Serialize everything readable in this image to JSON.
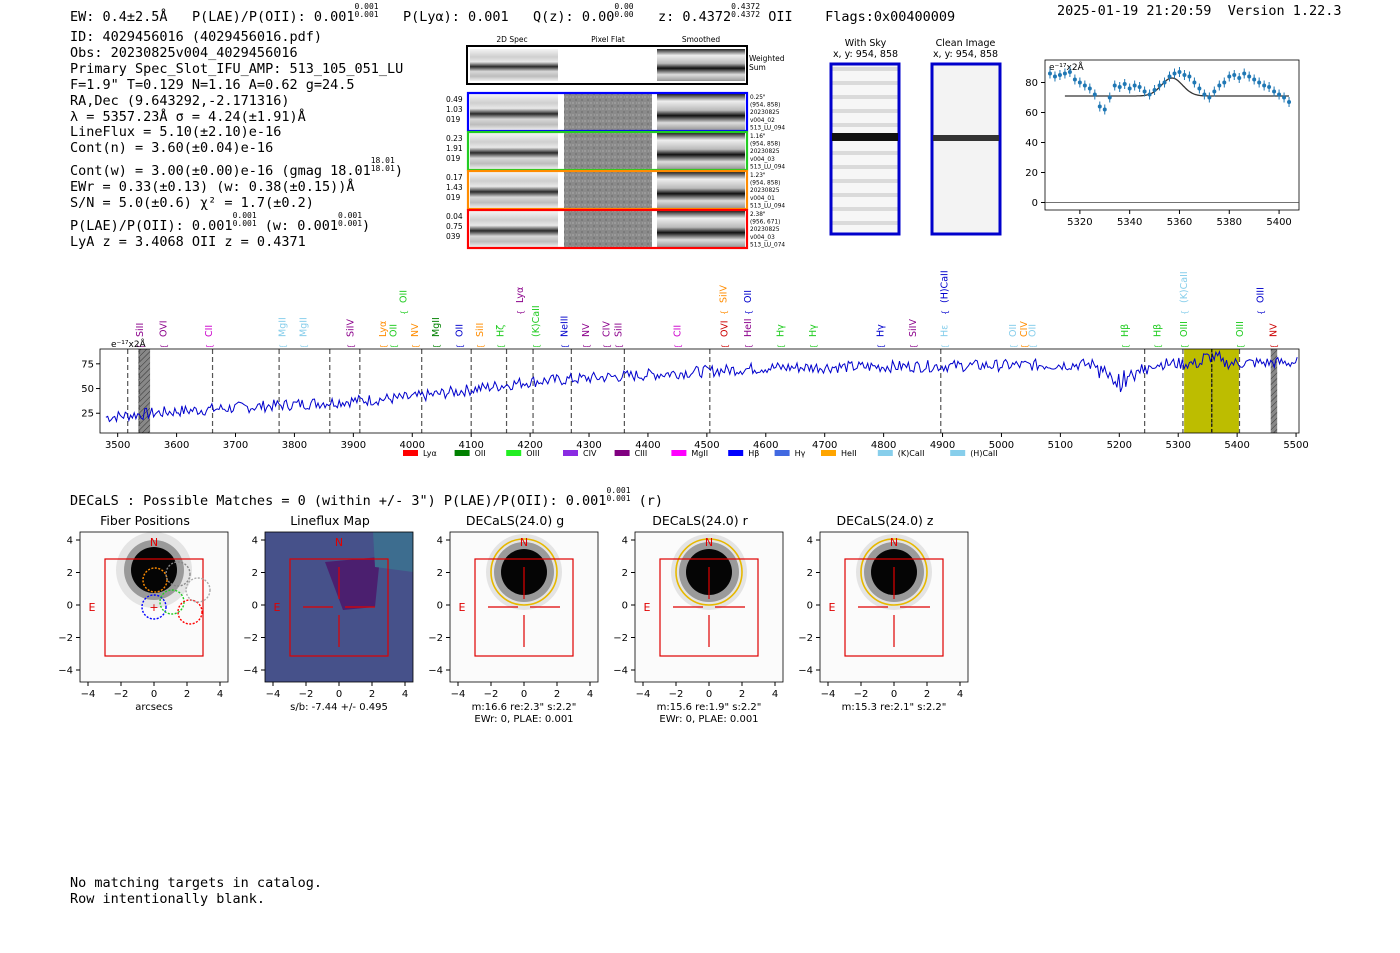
{
  "header": {
    "ew": "EW: 0.4±2.5Å",
    "plae": "P(LAE)/P(OII): 0.001",
    "plae_hi": "0.001",
    "plae_lo": "0.001",
    "plya": "P(Lyα): 0.001",
    "qz": "Q(z): 0.00",
    "qz_hi": "0.00",
    "qz_lo": "0.00",
    "z": "z: 0.4372",
    "z_hi": "0.4372",
    "z_lo": "0.4372",
    "z_line": "OII",
    "flags": "Flags:0x00400009",
    "timestamp": "2025-01-19 21:20:59",
    "version": "Version 1.22.3"
  },
  "info": {
    "id": "ID: 4029456016 (4029456016.pdf)",
    "obs": "Obs: 20230825v004_4029456016",
    "primary": "Primary Spec_Slot_IFU_AMP: 513_105_051_LU",
    "fit": "F=1.9\"  T=0.129  N=1.16  A=0.62  g=24.5",
    "radec": "RA,Dec (9.643292,-2.171316)",
    "lambda": "λ = 5357.23Å   σ = 4.24(±1.91)Å",
    "lineflux": "LineFlux = 5.10(±2.10)e-16",
    "contn": "Cont(n) = 3.60(±0.04)e-16",
    "contw": "Cont(w) = 3.00(±0.00)e-16 (gmag 18.01",
    "gmag_hi": "18.01",
    "gmag_lo": "18.01",
    "ewr": "EWr = 0.33(±0.13) (w: 0.38(±0.15))Å",
    "sn": "S/N = 5.0(±0.6)  χ² = 1.7(±0.2)",
    "plae_line": "P(LAE)/P(OII): 0.001",
    "plae_hi": "0.001",
    "plae_lo": "0.001",
    "plae_w": "(w: 0.001",
    "plae_w_hi": "0.001",
    "plae_w_lo": "0.001",
    "lyaz": "LyA z = 3.4068   OII z = 0.4371"
  },
  "cutouts": {
    "col_headers": [
      "2D Spec",
      "Pixel Flat",
      "Smoothed"
    ],
    "weighted_sum": [
      "Weighted",
      "Sum"
    ],
    "rows": [
      {
        "nums": [
          "0.49",
          "1.03",
          "019"
        ],
        "color": "#0000ff",
        "meta": [
          "0.25\"",
          "(954, 858)",
          "20230825",
          "v004_02",
          "513_LU_094"
        ]
      },
      {
        "nums": [
          "0.23",
          "1.91",
          "019"
        ],
        "color": "#22cc22",
        "meta": [
          "1.16\"",
          "(954, 858)",
          "20230825",
          "v004_03",
          "513_LU_094"
        ]
      },
      {
        "nums": [
          "0.17",
          "1.43",
          "019"
        ],
        "color": "#ff8c00",
        "meta": [
          "1.23\"",
          "(954, 858)",
          "20230825",
          "v004_01",
          "513_LU_094"
        ]
      },
      {
        "nums": [
          "0.04",
          "0.75",
          "039"
        ],
        "color": "#ff0000",
        "meta": [
          "2.38\"",
          "(956, 671)",
          "20230825",
          "v004_03",
          "513_LU_074"
        ]
      }
    ],
    "with_sky": [
      "With Sky",
      "x, y: 954, 858"
    ],
    "clean": [
      "Clean Image",
      "x, y: 954, 858"
    ]
  },
  "zoom_chart": {
    "type": "scatter",
    "unit_label": "e⁻¹⁷x2Å",
    "xlim": [
      5306,
      5408
    ],
    "ylim": [
      -5,
      95
    ],
    "xticks": [
      5320,
      5340,
      5360,
      5380,
      5400
    ],
    "yticks": [
      0,
      20,
      40,
      60,
      80
    ],
    "x": [
      5308,
      5310,
      5312,
      5314,
      5316,
      5318,
      5320,
      5322,
      5324,
      5326,
      5328,
      5330,
      5332,
      5334,
      5336,
      5338,
      5340,
      5342,
      5344,
      5346,
      5348,
      5350,
      5352,
      5354,
      5356,
      5358,
      5360,
      5362,
      5364,
      5366,
      5368,
      5370,
      5372,
      5374,
      5376,
      5378,
      5380,
      5382,
      5384,
      5386,
      5388,
      5390,
      5392,
      5394,
      5396,
      5398,
      5400,
      5402,
      5404
    ],
    "y": [
      86,
      84,
      85,
      86,
      87,
      82,
      80,
      78,
      76,
      72,
      64,
      62,
      70,
      78,
      77,
      79,
      76,
      78,
      77,
      74,
      72,
      75,
      78,
      80,
      84,
      86,
      87,
      85,
      84,
      80,
      76,
      72,
      70,
      74,
      78,
      80,
      84,
      85,
      83,
      86,
      84,
      82,
      80,
      78,
      77,
      74,
      72,
      70,
      67
    ],
    "model_baseline": 71,
    "model_peak": 83,
    "model_center": 5357,
    "model_sigma": 4.2
  },
  "spectrum": {
    "type": "line",
    "unit_label": "e⁻¹⁷x2Å",
    "xlim": [
      3470,
      5505
    ],
    "ylim": [
      5,
      90
    ],
    "xticks": [
      3500,
      3600,
      3700,
      3800,
      3900,
      4000,
      4100,
      4200,
      4300,
      4400,
      4500,
      4600,
      4700,
      4800,
      4900,
      5000,
      5100,
      5200,
      5300,
      5400,
      5500
    ],
    "yticks": [
      25,
      50,
      75
    ],
    "highlight": [
      5310,
      5403
    ],
    "peak": 5357,
    "masked": [
      [
        3535,
        3555
      ],
      [
        5457,
        5468
      ]
    ],
    "dashed_lines": [
      3517,
      3537,
      3661,
      3774,
      3860,
      3911,
      4016,
      4100,
      4160,
      4205,
      4270,
      4360,
      4505,
      4897,
      5243,
      5308,
      5357,
      5404
    ]
  },
  "line_labels": [
    {
      "t": "SiII",
      "x": 3538,
      "row": 1,
      "c": "#8b008b"
    },
    {
      "t": "OVI",
      "x": 3578,
      "row": 1,
      "c": "#8b008b"
    },
    {
      "t": "CII",
      "x": 3655,
      "row": 1,
      "c": "#cc00cc"
    },
    {
      "t": "MgII",
      "x": 3780,
      "row": 1,
      "c": "#87ceeb"
    },
    {
      "t": "MgII",
      "x": 3815,
      "row": 1,
      "c": "#87ceeb"
    },
    {
      "t": "SiIV",
      "x": 3895,
      "row": 1,
      "c": "#8b008b"
    },
    {
      "t": "Lyα",
      "x": 3950,
      "row": 1,
      "c": "#ff8c00"
    },
    {
      "t": "OII",
      "x": 3968,
      "row": 1,
      "c": "#22cc22"
    },
    {
      "t": "OII",
      "x": 3985,
      "row": 0,
      "c": "#22cc22"
    },
    {
      "t": "NV",
      "x": 4005,
      "row": 1,
      "c": "#ff8c00"
    },
    {
      "t": "MgII",
      "x": 4040,
      "row": 1,
      "c": "#008000"
    },
    {
      "t": "OII",
      "x": 4080,
      "row": 1,
      "c": "#0000cc"
    },
    {
      "t": "SiII",
      "x": 4115,
      "row": 1,
      "c": "#ff8c00"
    },
    {
      "t": "Hζ",
      "x": 4150,
      "row": 1,
      "c": "#22cc22"
    },
    {
      "t": "Lyα",
      "x": 4183,
      "row": 0,
      "c": "#8b008b"
    },
    {
      "t": "(K)CaII",
      "x": 4210,
      "row": 1,
      "c": "#22cc22"
    },
    {
      "t": "NeIII",
      "x": 4258,
      "row": 1,
      "c": "#0000cc"
    },
    {
      "t": "NV",
      "x": 4295,
      "row": 1,
      "c": "#8b008b"
    },
    {
      "t": "SiII",
      "x": 4350,
      "row": 1,
      "c": "#8b008b"
    },
    {
      "t": "CIV",
      "x": 4330,
      "row": 1,
      "c": "#8b008b"
    },
    {
      "t": "CII",
      "x": 4450,
      "row": 1,
      "c": "#cc00cc"
    },
    {
      "t": "SiIV",
      "x": 4528,
      "row": 0,
      "c": "#ff8c00"
    },
    {
      "t": "OVI",
      "x": 4530,
      "row": 1,
      "c": "#cc0000"
    },
    {
      "t": "OII",
      "x": 4570,
      "row": 0,
      "c": "#0000cc"
    },
    {
      "t": "HeII",
      "x": 4570,
      "row": 1,
      "c": "#8b008b"
    },
    {
      "t": "Hγ",
      "x": 4625,
      "row": 1,
      "c": "#22cc22"
    },
    {
      "t": "Hγ",
      "x": 4680,
      "row": 1,
      "c": "#22cc22"
    },
    {
      "t": "Hγ",
      "x": 4795,
      "row": 1,
      "c": "#0000cc"
    },
    {
      "t": "SiIV",
      "x": 4850,
      "row": 1,
      "c": "#8b008b"
    },
    {
      "t": "(H)CaII",
      "x": 4903,
      "row": 0,
      "c": "#0000cc"
    },
    {
      "t": "Hε",
      "x": 4903,
      "row": 1,
      "c": "#87ceeb"
    },
    {
      "t": "OII",
      "x": 5020,
      "row": 1,
      "c": "#87ceeb"
    },
    {
      "t": "CIV",
      "x": 5038,
      "row": 1,
      "c": "#ff8c00"
    },
    {
      "t": "OII",
      "x": 5053,
      "row": 1,
      "c": "#87ceeb"
    },
    {
      "t": "(K)CaII",
      "x": 5310,
      "row": 0,
      "c": "#87ceeb"
    },
    {
      "t": "Hβ",
      "x": 5210,
      "row": 1,
      "c": "#22cc22"
    },
    {
      "t": "Hβ",
      "x": 5265,
      "row": 1,
      "c": "#22cc22"
    },
    {
      "t": "OIII",
      "x": 5310,
      "row": 1,
      "c": "#22cc22"
    },
    {
      "t": "OIII",
      "x": 5405,
      "row": 1,
      "c": "#22cc22"
    },
    {
      "t": "OIII",
      "x": 5440,
      "row": 0,
      "c": "#0000cc"
    },
    {
      "t": "NV",
      "x": 5462,
      "row": 1,
      "c": "#cc0000"
    }
  ],
  "legend": [
    {
      "t": "Lyα",
      "c": "#ff0000"
    },
    {
      "t": "OII",
      "c": "#008000"
    },
    {
      "t": "OIII",
      "c": "#22ee22"
    },
    {
      "t": "CIV",
      "c": "#8a2be2"
    },
    {
      "t": "CIII",
      "c": "#800080"
    },
    {
      "t": "MgII",
      "c": "#ff00ff"
    },
    {
      "t": "Hβ",
      "c": "#0000ff"
    },
    {
      "t": "Hγ",
      "c": "#4169e1"
    },
    {
      "t": "HeII",
      "c": "#ffa500"
    },
    {
      "t": "(K)CaII",
      "c": "#87ceeb"
    },
    {
      "t": "(H)CaII",
      "c": "#87ceeb"
    }
  ],
  "decals": {
    "title": "DECaLS : Possible Matches = 0 (within +/- 3\")  P(LAE)/P(OII): 0.001",
    "plae_hi": "0.001",
    "plae_lo": "0.001",
    "band": "(r)"
  },
  "panels": [
    {
      "title": "Fiber Positions",
      "caption": [
        "arcsecs"
      ]
    },
    {
      "title": "Lineflux Map",
      "caption": [
        "s/b: -7.44 +/- 0.495"
      ]
    },
    {
      "title": "DECaLS(24.0) g",
      "caption": [
        "m:16.6  re:2.3\"  s:2.2\"",
        "EWr: 0, PLAE: 0.001"
      ]
    },
    {
      "title": "DECaLS(24.0) r",
      "caption": [
        "m:15.6  re:1.9\"  s:2.2\"",
        "EWr: 0, PLAE: 0.001"
      ]
    },
    {
      "title": "DECaLS(24.0) z",
      "caption": [
        "m:15.3  re:2.1\"  s:2.2\""
      ]
    }
  ],
  "panel_axes": {
    "ticks": [
      "−4",
      "−2",
      "0",
      "2",
      "4"
    ],
    "north": "N",
    "east": "E"
  },
  "footer": [
    "No matching targets in catalog.",
    "Row intentionally blank."
  ]
}
